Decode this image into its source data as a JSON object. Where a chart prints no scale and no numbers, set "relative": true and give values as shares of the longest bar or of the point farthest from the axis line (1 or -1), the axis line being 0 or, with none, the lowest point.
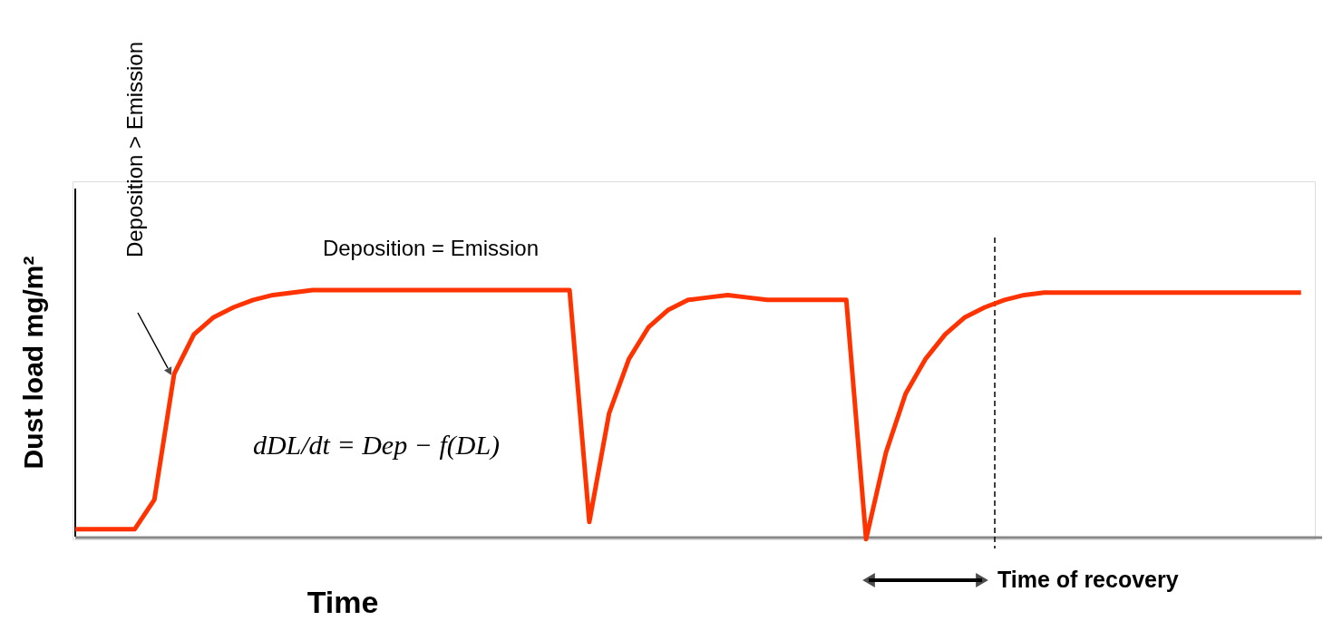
{
  "chart_data": {
    "type": "line",
    "relative": true,
    "xlabel": "Time",
    "ylabel": "Dust load mg/m²",
    "categories": [
      null,
      null,
      null,
      null,
      null,
      null,
      null,
      null,
      null,
      null,
      null,
      null,
      null,
      null,
      null,
      null,
      null,
      null,
      null,
      null,
      null,
      null,
      null,
      null,
      null,
      null,
      null,
      null,
      null,
      null,
      null,
      null,
      null,
      null,
      null,
      null,
      null,
      null,
      null,
      null,
      null,
      null,
      null,
      null,
      null,
      null,
      null,
      null,
      null,
      null,
      null,
      null,
      null,
      null,
      null,
      null,
      null,
      null,
      null,
      null,
      null,
      null,
      null
    ],
    "series": [
      {
        "color": "#ff3300",
        "values": [
          0.03,
          0.03,
          0.03,
          0.03,
          0.15,
          0.66,
          0.82,
          0.89,
          0.93,
          0.96,
          0.98,
          0.99,
          1.0,
          1.0,
          1.0,
          1.0,
          1.0,
          1.0,
          1.0,
          1.0,
          1.0,
          1.0,
          1.0,
          1.0,
          1.0,
          1.0,
          0.06,
          0.5,
          0.72,
          0.85,
          0.92,
          0.96,
          0.97,
          0.98,
          0.97,
          0.96,
          0.96,
          0.96,
          0.96,
          0.96,
          -0.01,
          0.34,
          0.58,
          0.72,
          0.82,
          0.89,
          0.93,
          0.96,
          0.98,
          0.99,
          0.99,
          0.99,
          0.99,
          0.99,
          0.99,
          0.99,
          0.99,
          0.99,
          0.99,
          0.99,
          0.99,
          0.99,
          0.99
        ]
      }
    ],
    "annotations": [
      "Deposition > Emission",
      "Deposition = Emission",
      "dDL/dt = Dep − f(DL)",
      "Time of recovery"
    ],
    "grid": false,
    "marker": "none",
    "line_style": "solid"
  }
}
